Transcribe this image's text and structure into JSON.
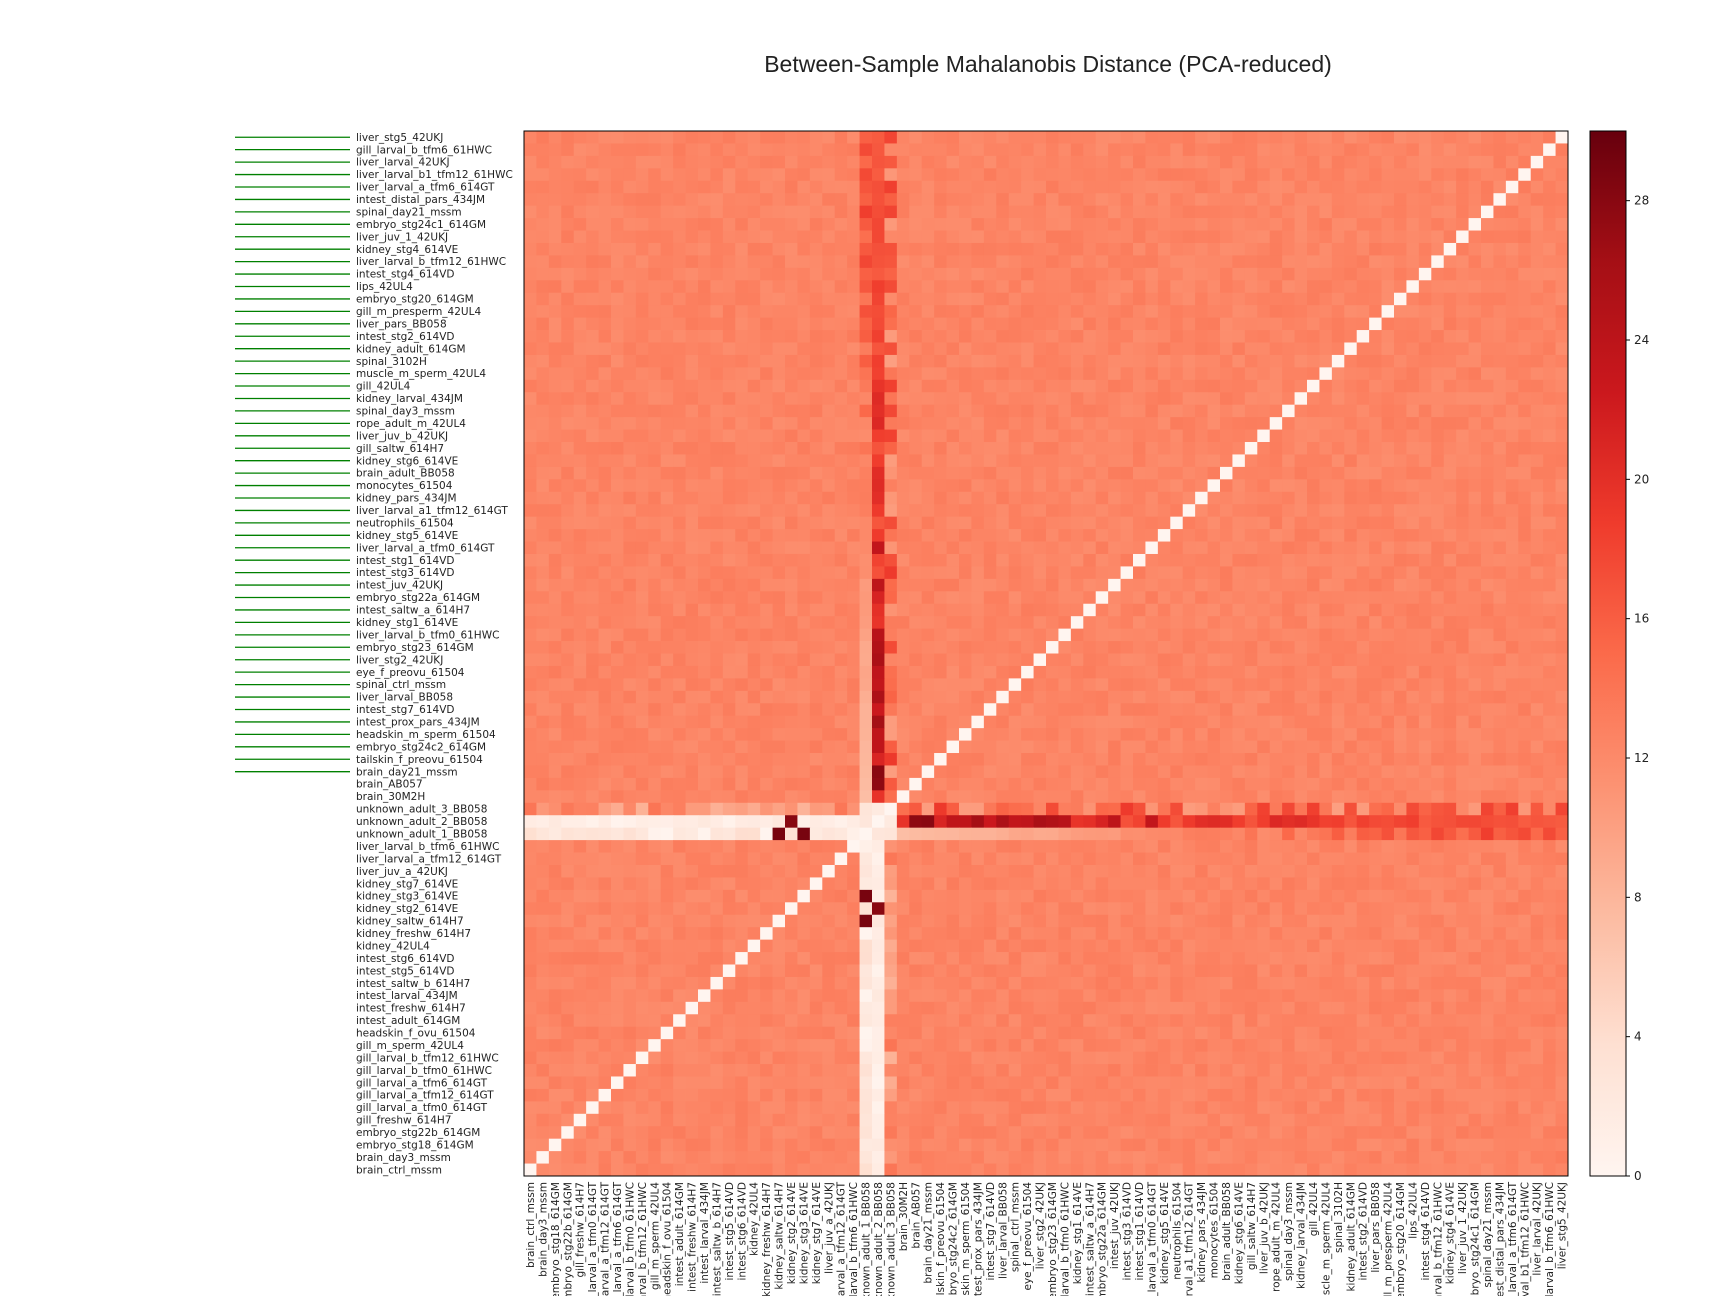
{
  "chart_data": {
    "type": "heatmap",
    "title": "Between-Sample Mahalanobis Distance (PCA-reduced)",
    "xlabel": "",
    "ylabel": "",
    "labels": [
      "brain_ctrl_mssm",
      "brain_day3_mssm",
      "embryo_stg18_614GM",
      "embryo_stg22b_614GM",
      "gill_freshw_614H7",
      "gill_larval_a_tfm0_614GT",
      "gill_larval_a_tfm12_614GT",
      "gill_larval_a_tfm6_614GT",
      "gill_larval_b_tfm0_61HWC",
      "gill_larval_b_tfm12_61HWC",
      "gill_m_sperm_42UL4",
      "headskin_f_ovu_61504",
      "intest_adult_614GM",
      "intest_freshw_614H7",
      "intest_larval_434JM",
      "intest_saltw_b_614H7",
      "intest_stg5_614VD",
      "intest_stg6_614VD",
      "kidney_42UL4",
      "kidney_freshw_614H7",
      "kidney_saltw_614H7",
      "kidney_stg2_614VE",
      "kidney_stg3_614VE",
      "kidney_stg7_614VE",
      "liver_juv_a_42UKJ",
      "liver_larval_a_tfm12_614GT",
      "liver_larval_b_tfm6_61HWC",
      "unknown_adult_1_BB058",
      "unknown_adult_2_BB058",
      "unknown_adult_3_BB058",
      "brain_30M2H",
      "brain_AB057",
      "brain_day21_mssm",
      "tailskin_f_preovu_61504",
      "embryo_stg24c2_614GM",
      "headskin_m_sperm_61504",
      "intest_prox_pars_434JM",
      "intest_stg7_614VD",
      "liver_larval_BB058",
      "spinal_ctrl_mssm",
      "eye_f_preovu_61504",
      "liver_stg2_42UKJ",
      "embryo_stg23_614GM",
      "liver_larval_b_tfm0_61HWC",
      "kidney_stg1_614VE",
      "intest_saltw_a_614H7",
      "embryo_stg22a_614GM",
      "intest_juv_42UKJ",
      "intest_stg3_614VD",
      "intest_stg1_614VD",
      "liver_larval_a_tfm0_614GT",
      "kidney_stg5_614VE",
      "neutrophils_61504",
      "liver_larval_a1_tfm12_614GT",
      "kidney_pars_434JM",
      "monocytes_61504",
      "brain_adult_BB058",
      "kidney_stg6_614VE",
      "gill_saltw_614H7",
      "liver_juv_b_42UKJ",
      "rope_adult_m_42UL4",
      "spinal_day3_mssm",
      "kidney_larval_434JM",
      "gill_42UL4",
      "muscle_m_sperm_42UL4",
      "spinal_3102H",
      "kidney_adult_614GM",
      "intest_stg2_614VD",
      "liver_pars_BB058",
      "gill_m_presperm_42UL4",
      "embryo_stg20_614GM",
      "lips_42UL4",
      "intest_stg4_614VD",
      "liver_larval_b_tfm12_61HWC",
      "kidney_stg4_614VE",
      "liver_juv_1_42UKJ",
      "embryo_stg24c1_614GM",
      "spinal_day21_mssm",
      "intest_distal_pars_434JM",
      "liver_larval_a_tfm6_614GT",
      "liver_larval_b1_tfm12_61HWC",
      "liver_larval_42UKJ",
      "gill_larval_b_tfm6_61HWC",
      "liver_stg5_42UKJ"
    ],
    "row_order": "top_to_bottom_reversed",
    "column_order": "left_to_right",
    "highlighted_rows": [
      "liver_stg5_42UKJ",
      "gill_larval_b_tfm6_61HWC",
      "liver_larval_42UKJ",
      "liver_larval_b1_tfm12_61HWC",
      "liver_larval_a_tfm6_614GT",
      "intest_distal_pars_434JM",
      "spinal_day21_mssm",
      "embryo_stg24c1_614GM",
      "liver_juv_1_42UKJ",
      "kidney_stg4_614VE",
      "liver_larval_b_tfm12_61HWC",
      "intest_stg4_614VD",
      "lips_42UL4",
      "embryo_stg20_614GM",
      "gill_m_presperm_42UL4",
      "liver_pars_BB058",
      "intest_stg2_614VD",
      "kidney_adult_614GM",
      "spinal_3102H",
      "muscle_m_sperm_42UL4",
      "gill_42UL4",
      "kidney_larval_434JM",
      "spinal_day3_mssm",
      "rope_adult_m_42UL4",
      "liver_juv_b_42UKJ",
      "gill_saltw_614H7",
      "kidney_stg6_614VE",
      "brain_adult_BB058",
      "monocytes_61504",
      "kidney_pars_434JM",
      "liver_larval_a1_tfm12_614GT",
      "neutrophils_61504",
      "kidney_stg5_614VE",
      "liver_larval_a_tfm0_614GT",
      "intest_stg1_614VD",
      "intest_stg3_614VD",
      "intest_juv_42UKJ",
      "embryo_stg22a_614GM",
      "intest_saltw_a_614H7",
      "kidney_stg1_614VE",
      "liver_larval_b_tfm0_61HWC",
      "embryo_stg23_614GM",
      "liver_stg2_42UKJ",
      "eye_f_preovu_61504",
      "spinal_ctrl_mssm",
      "liver_larval_BB058",
      "intest_stg7_614VD",
      "intest_prox_pars_434JM",
      "headskin_m_sperm_61504",
      "embryo_stg24c2_614GM",
      "tailskin_f_preovu_61504",
      "brain_day21_mssm"
    ],
    "value_description": "pairwise Mahalanobis distance; diagonal 0; typical off-diagonal about 12.5; rows/columns unknown_adult_1_BB058, unknown_adult_2_BB058, unknown_adult_3_BB058 are outliers (0 to 29)",
    "typical_value": 12.5,
    "diagonal_value": 0,
    "colorbar": {
      "min": 0,
      "max": 30,
      "ticks": [
        0,
        4,
        8,
        12,
        16,
        20,
        24,
        28
      ],
      "colormap": "Reds"
    },
    "legend": "none",
    "grid": false
  }
}
